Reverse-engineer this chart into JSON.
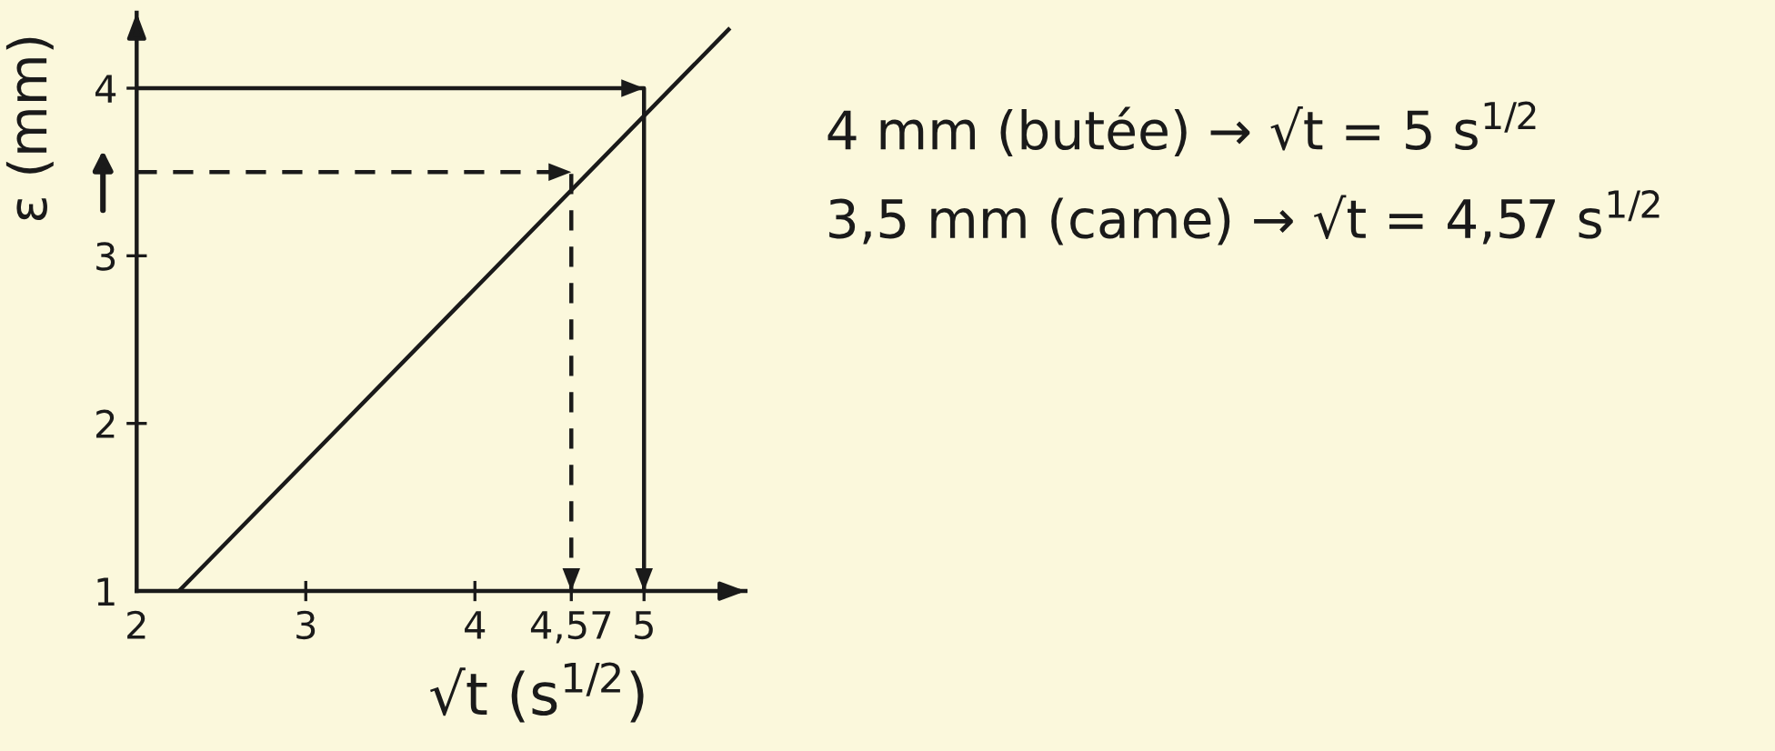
{
  "chart_data": {
    "type": "line",
    "xlabel": "√t (s$^{1/2}$)",
    "ylabel": "ε (mm)",
    "annotations": [
      "4 mm (butée) → √t = 5 s$^{1/2}$",
      "3,5 mm (came) → √t = 4,57 s$^{1/2}$"
    ],
    "series": [
      {
        "color": "#1a1a1a",
        "x": [
          2.25,
          5.5
        ],
        "values": [
          1,
          4.35
        ]
      },
      {
        "type": "step",
        "color": "#1a1a1a",
        "x": [
          2,
          5
        ],
        "values": [
          4,
          1
        ],
        "line_style": "solid"
      },
      {
        "type": "step",
        "color": "#1a1a1a",
        "x": [
          2,
          4.57
        ],
        "values": [
          3.5,
          1
        ],
        "line_style": "dashed"
      }
    ],
    "xlim": [
      2,
      5.6
    ],
    "ylim": [
      1,
      4.45
    ],
    "xticks": [
      2,
      3,
      4,
      {
        "value": 4.57,
        "label": "4,57"
      },
      5
    ],
    "yticks": [
      1,
      2,
      3,
      4
    ],
    "grid": false,
    "marker": "none"
  }
}
